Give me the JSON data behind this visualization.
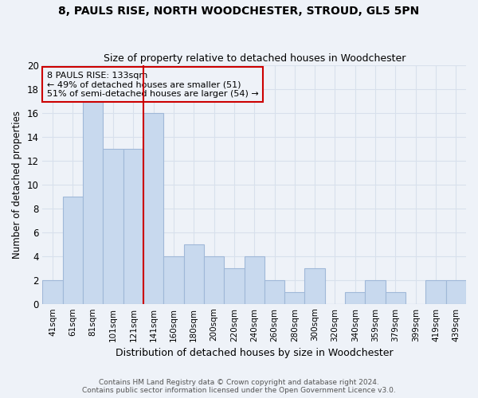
{
  "title1": "8, PAULS RISE, NORTH WOODCHESTER, STROUD, GL5 5PN",
  "title2": "Size of property relative to detached houses in Woodchester",
  "xlabel": "Distribution of detached houses by size in Woodchester",
  "ylabel": "Number of detached properties",
  "bar_labels": [
    "41sqm",
    "61sqm",
    "81sqm",
    "101sqm",
    "121sqm",
    "141sqm",
    "160sqm",
    "180sqm",
    "200sqm",
    "220sqm",
    "240sqm",
    "260sqm",
    "280sqm",
    "300sqm",
    "320sqm",
    "340sqm",
    "359sqm",
    "379sqm",
    "399sqm",
    "419sqm",
    "439sqm"
  ],
  "bar_values": [
    2,
    9,
    17,
    13,
    13,
    16,
    4,
    5,
    4,
    3,
    4,
    2,
    1,
    3,
    0,
    1,
    2,
    1,
    0,
    2,
    2
  ],
  "bar_color": "#c8d9ee",
  "bar_edge_color": "#a0b8d8",
  "annotation_title": "8 PAULS RISE: 133sqm",
  "annotation_line1": "← 49% of detached houses are smaller (51)",
  "annotation_line2": "51% of semi-detached houses are larger (54) →",
  "vline_color": "#cc0000",
  "annotation_box_edge": "#cc0000",
  "ylim": [
    0,
    20
  ],
  "yticks": [
    0,
    2,
    4,
    6,
    8,
    10,
    12,
    14,
    16,
    18,
    20
  ],
  "footnote1": "Contains HM Land Registry data © Crown copyright and database right 2024.",
  "footnote2": "Contains public sector information licensed under the Open Government Licence v3.0.",
  "bg_color": "#eef2f8",
  "grid_color": "#d8e0ec",
  "vline_bar_index": 4
}
